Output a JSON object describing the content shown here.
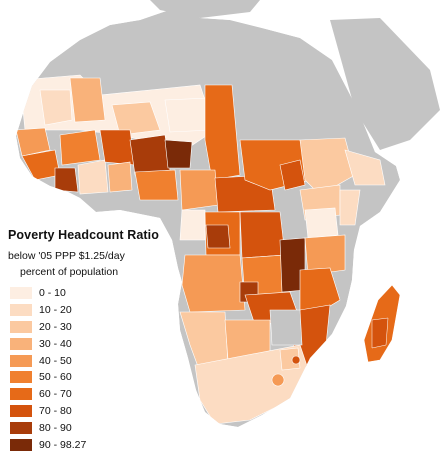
{
  "legend": {
    "title": "Poverty Headcount Ratio",
    "subtitle": "below '05 PPP $1.25/day",
    "unit": "percent of population",
    "classes": [
      {
        "label": "0 - 10",
        "color": "#fdeee2"
      },
      {
        "label": "10 - 20",
        "color": "#fcdcc2"
      },
      {
        "label": "20 - 30",
        "color": "#fbc9a0"
      },
      {
        "label": "30 - 40",
        "color": "#f9b27a"
      },
      {
        "label": "40 - 50",
        "color": "#f59a55"
      },
      {
        "label": "50 - 60",
        "color": "#f0802f"
      },
      {
        "label": "60 - 70",
        "color": "#e66a18"
      },
      {
        "label": "70 - 80",
        "color": "#d4530d"
      },
      {
        "label": "80 - 90",
        "color": "#a83c0a"
      },
      {
        "label": "90 - 98.27",
        "color": "#7a2a08"
      }
    ]
  },
  "colors": {
    "no_data": "#c4c4c4",
    "border": "#ffffff",
    "ocean": "#ffffff"
  }
}
